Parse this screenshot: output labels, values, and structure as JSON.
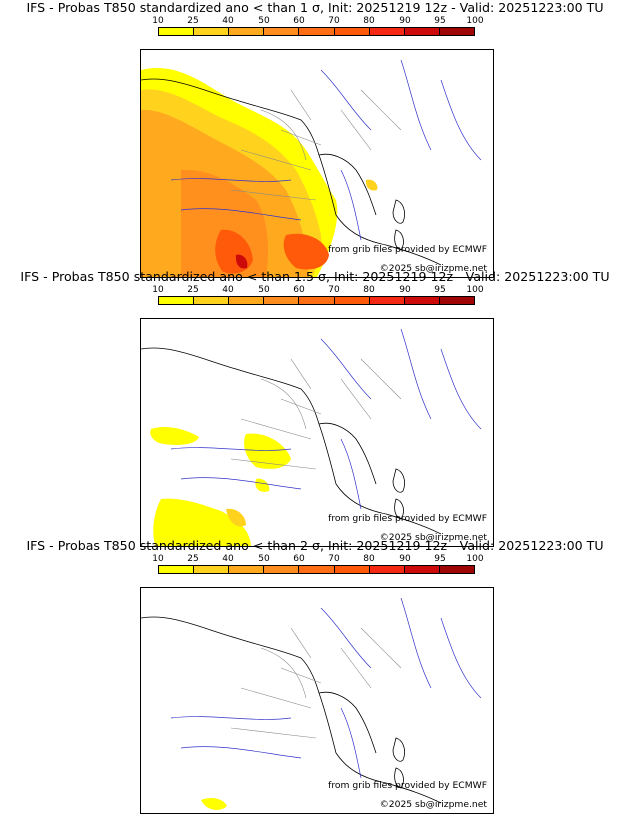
{
  "colorbar": {
    "labels": [
      "10",
      "25",
      "40",
      "50",
      "60",
      "70",
      "80",
      "90",
      "95",
      "100"
    ],
    "colors": [
      "#ffff00",
      "#ffd21e",
      "#ffaa1e",
      "#ff8c1e",
      "#ff6e14",
      "#ff5a0a",
      "#f52814",
      "#cd0a0a",
      "#a00505",
      "#640000"
    ]
  },
  "panels": [
    {
      "title": "IFS - Probas T850  standardized ano < than 1 σ, Init: 20251219 12z - Valid: 20251223:00 TU",
      "source_credit": "from grib files provided by ECMWF",
      "copyright": "©2025 sb@irizpme.net",
      "coverage": "high"
    },
    {
      "title": "IFS - Probas T850  standardized ano < than 1.5 σ, Init: 20251219 12z - Valid: 20251223:00 TU",
      "source_credit": "from grib files provided by ECMWF",
      "copyright": "©2025 sb@irizpme.net",
      "coverage": "medium"
    },
    {
      "title": "IFS - Probas T850  standardized ano < than 2 σ, Init: 20251219 12z - Valid: 20251223:00 TU",
      "source_credit": "from grib files provided by ECMWF",
      "copyright": "©2025 sb@irizpme.net",
      "coverage": "low"
    }
  ]
}
